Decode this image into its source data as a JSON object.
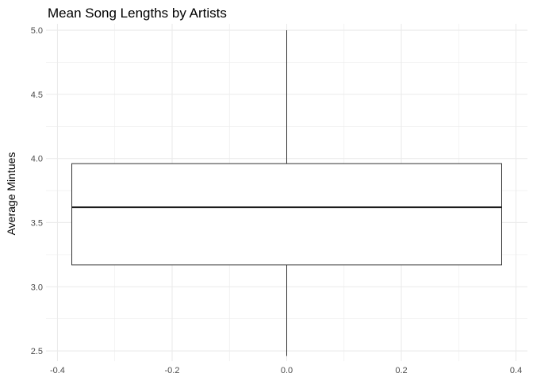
{
  "chart_data": {
    "type": "boxplot",
    "title": "Mean Song Lengths by Artists",
    "xlabel": "",
    "ylabel": "Average Mintues",
    "xlim": [
      -0.42,
      0.42
    ],
    "ylim": [
      2.42,
      5.05
    ],
    "x_ticks": [
      -0.4,
      -0.2,
      0.0,
      0.2,
      0.4
    ],
    "x_tick_labels": [
      "-0.4",
      "-0.2",
      "0.0",
      "0.2",
      "0.4"
    ],
    "y_ticks": [
      2.5,
      3.0,
      3.5,
      4.0,
      4.5,
      5.0
    ],
    "y_tick_labels": [
      "2.5",
      "3.0",
      "3.5",
      "4.0",
      "4.5",
      "5.0"
    ],
    "grid": true,
    "legend": "none",
    "box": {
      "x_center": 0.0,
      "x_min": -0.375,
      "x_max": 0.375,
      "whisker_low": 2.46,
      "q1": 3.17,
      "median": 3.62,
      "q3": 3.96,
      "whisker_high": 5.0
    },
    "colors": {
      "grid": "#ebebeb",
      "box_stroke": "#333333",
      "box_fill": "#ffffff",
      "median": "#1a1a1a",
      "tick_text": "#4d4d4d"
    }
  }
}
